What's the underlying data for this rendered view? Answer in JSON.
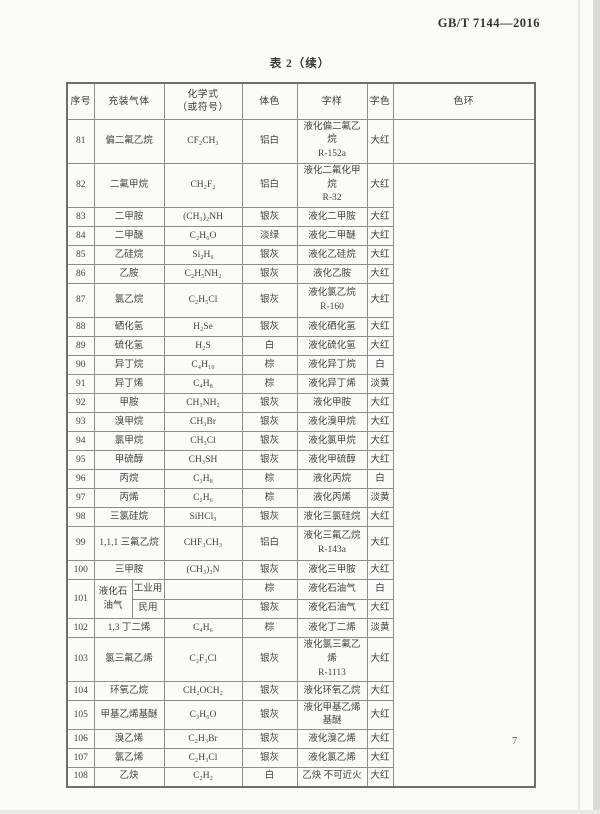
{
  "page": {
    "standard_code": "GB/T 7144—2016",
    "table_title": "表 2（续）",
    "page_number": "7"
  },
  "table": {
    "headers": {
      "no": "序号",
      "gas": "充装气体",
      "formula_line1": "化学式",
      "formula_line2": "（或符号）",
      "body_color": "体色",
      "label": "字样",
      "label_color": "字色",
      "color_ring": "色环"
    },
    "rows": [
      {
        "no": "81",
        "gas": "偏二氟乙烷",
        "formula": "CF₂CH₃",
        "body_color": "铝白",
        "label": "液化偏二氟乙烷",
        "label2": "R-152a",
        "label_color": "大红"
      },
      {
        "no": "82",
        "gas": "二氟甲烷",
        "formula": "CH₂F₂",
        "body_color": "铝白",
        "label": "液化二氟化甲烷",
        "label2": "R-32",
        "label_color": "大红"
      },
      {
        "no": "83",
        "gas": "二甲胺",
        "formula": "(CH₃)₂NH",
        "body_color": "银灰",
        "label": "液化二甲胺",
        "label_color": "大红"
      },
      {
        "no": "84",
        "gas": "二甲醚",
        "formula": "C₂H₆O",
        "body_color": "淡绿",
        "label": "液化二甲醚",
        "label_color": "大红"
      },
      {
        "no": "85",
        "gas": "乙硅烷",
        "formula": "Si₂H₆",
        "body_color": "银灰",
        "label": "液化乙硅烷",
        "label_color": "大红"
      },
      {
        "no": "86",
        "gas": "乙胺",
        "formula": "C₂H₅NH₂",
        "body_color": "银灰",
        "label": "液化乙胺",
        "label_color": "大红"
      },
      {
        "no": "87",
        "gas": "氯乙烷",
        "formula": "C₂H₅Cl",
        "body_color": "银灰",
        "label": "液化氯乙烷",
        "label2": "R-160",
        "label_color": "大红"
      },
      {
        "no": "88",
        "gas": "硒化氢",
        "formula": "H₂Se",
        "body_color": "银灰",
        "label": "液化硒化氢",
        "label_color": "大红"
      },
      {
        "no": "89",
        "gas": "硫化氢",
        "formula": "H₂S",
        "body_color": "白",
        "label": "液化硫化氢",
        "label_color": "大红"
      },
      {
        "no": "90",
        "gas": "异丁烷",
        "formula": "C₄H₁₀",
        "body_color": "棕",
        "label": "液化异丁烷",
        "label_color": "白"
      },
      {
        "no": "91",
        "gas": "异丁烯",
        "formula": "C₄H₈",
        "body_color": "棕",
        "label": "液化异丁烯",
        "label_color": "淡黄"
      },
      {
        "no": "92",
        "gas": "甲胺",
        "formula": "CH₃NH₂",
        "body_color": "银灰",
        "label": "液化甲胺",
        "label_color": "大红"
      },
      {
        "no": "93",
        "gas": "溴甲烷",
        "formula": "CH₃Br",
        "body_color": "银灰",
        "label": "液化溴甲烷",
        "label_color": "大红"
      },
      {
        "no": "94",
        "gas": "氯甲烷",
        "formula": "CH₃Cl",
        "body_color": "银灰",
        "label": "液化氯甲烷",
        "label_color": "大红"
      },
      {
        "no": "95",
        "gas": "甲硫醇",
        "formula": "CH₃SH",
        "body_color": "银灰",
        "label": "液化甲硫醇",
        "label_color": "大红"
      },
      {
        "no": "96",
        "gas": "丙烷",
        "formula": "C₃H₈",
        "body_color": "棕",
        "label": "液化丙烷",
        "label_color": "白"
      },
      {
        "no": "97",
        "gas": "丙烯",
        "formula": "C₃H₆",
        "body_color": "棕",
        "label": "液化丙烯",
        "label_color": "淡黄"
      },
      {
        "no": "98",
        "gas": "三氯硅烷",
        "formula": "SiHCl₃",
        "body_color": "银灰",
        "label": "液化三氯硅烷",
        "label_color": "大红"
      },
      {
        "no": "99",
        "gas": "1,1,1 三氟乙烷",
        "formula": "CHF₃CH₃",
        "body_color": "铝白",
        "label": "液化三氟乙烷",
        "label2": "R-143a",
        "label_color": "大红"
      },
      {
        "no": "100",
        "gas": "三甲胺",
        "formula": "(CH₃)₃N",
        "body_color": "银灰",
        "label": "液化三甲胺",
        "label_color": "大红"
      },
      {
        "no": "102",
        "gas": "1,3 丁二烯",
        "formula": "C₄H₆",
        "body_color": "棕",
        "label": "液化丁二烯",
        "label_color": "淡黄"
      },
      {
        "no": "103",
        "gas": "氯三氟乙烯",
        "formula": "C₂F₃Cl",
        "body_color": "银灰",
        "label": "液化氯三氟乙烯",
        "label2": "R-1113",
        "label_color": "大红"
      },
      {
        "no": "104",
        "gas": "环氧乙烷",
        "formula": "CH₂OCH₂",
        "body_color": "银灰",
        "label": "液化环氧乙烷",
        "label_color": "大红"
      },
      {
        "no": "105",
        "gas": "甲基乙烯基醚",
        "formula": "C₃H₆O",
        "body_color": "银灰",
        "label": "液化甲基乙烯基醚",
        "label_color": "大红"
      },
      {
        "no": "106",
        "gas": "溴乙烯",
        "formula": "C₂H₃Br",
        "body_color": "银灰",
        "label": "液化溴乙烯",
        "label_color": "大红"
      },
      {
        "no": "107",
        "gas": "氯乙烯",
        "formula": "C₂H₃Cl",
        "body_color": "银灰",
        "label": "液化氯乙烯",
        "label_color": "大红"
      },
      {
        "no": "108",
        "gas": "乙炔",
        "formula": "C₂H₂",
        "body_color": "白",
        "label": "乙炔 不可近火",
        "label_color": "大红"
      }
    ],
    "lpg_row": {
      "no": "101",
      "gas": "液化石油气",
      "variants": [
        {
          "use": "工业用",
          "body_color": "棕",
          "label": "液化石油气",
          "label_color": "白"
        },
        {
          "use": "民用",
          "body_color": "银灰",
          "label": "液化石油气",
          "label_color": "大红"
        }
      ]
    }
  }
}
